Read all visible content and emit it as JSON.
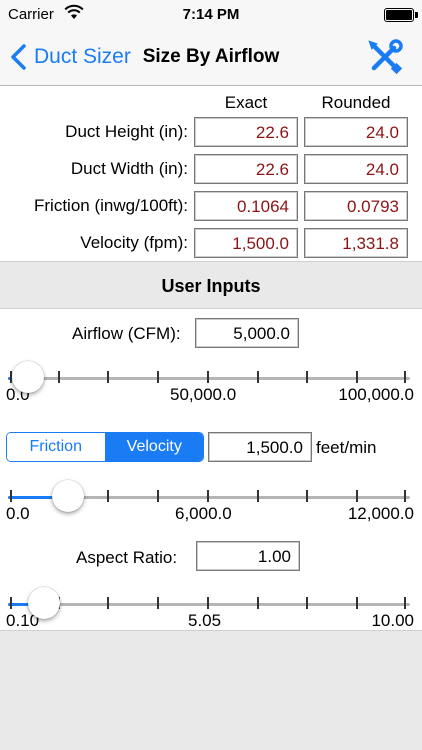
{
  "status_bar": {
    "carrier": "Carrier",
    "time": "7:14 PM"
  },
  "nav": {
    "back_label": "Duct Sizer",
    "title": "Size By Airflow",
    "tools_icon": "tools-icon"
  },
  "results": {
    "col_exact": "Exact",
    "col_rounded": "Rounded",
    "rows": [
      {
        "label": "Duct Height (in):",
        "exact": "22.6",
        "rounded": "24.0"
      },
      {
        "label": "Duct Width (in):",
        "exact": "22.6",
        "rounded": "24.0"
      },
      {
        "label": "Friction (inwg/100ft):",
        "exact": "0.1064",
        "rounded": "0.0793"
      },
      {
        "label": "Velocity (fpm):",
        "exact": "1,500.0",
        "rounded": "1,331.8"
      }
    ]
  },
  "section_title": "User Inputs",
  "airflow": {
    "label": "Airflow (CFM):",
    "value": "5,000.0",
    "slider": {
      "min_label": "0.0",
      "mid_label": "50,000.0",
      "max_label": "100,000.0",
      "fraction": 0.05
    }
  },
  "mode": {
    "options": [
      "Friction",
      "Velocity"
    ],
    "selected": "Velocity",
    "value": "1,500.0",
    "unit": "feet/min",
    "slider": {
      "min_label": "0.0",
      "mid_label": "6,000.0",
      "max_label": "12,000.0",
      "fraction": 0.15
    }
  },
  "aspect": {
    "label": "Aspect Ratio:",
    "value": "1.00",
    "slider": {
      "min_label": "0.10",
      "mid_label": "5.05",
      "max_label": "10.00",
      "fraction": 0.09
    }
  },
  "colors": {
    "accent": "#1a7cf5",
    "value_text": "#8b1515",
    "section_bg": "#e9e9e9"
  }
}
